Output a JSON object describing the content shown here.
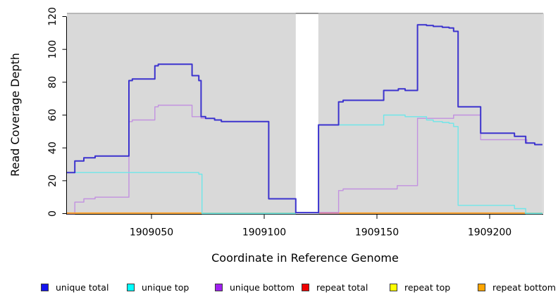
{
  "figure": {
    "x_axis_title": "Coordinate in Reference Genome",
    "y_axis_title": "Read Coverage Depth"
  },
  "legend": {
    "items": [
      {
        "label": "unique total",
        "color": "#1414EE"
      },
      {
        "label": "unique top",
        "color": "#00FFFF"
      },
      {
        "label": "unique bottom",
        "color": "#A020F0"
      },
      {
        "label": "repeat total",
        "color": "#EE0000"
      },
      {
        "label": "repeat top",
        "color": "#FFFF00"
      },
      {
        "label": "repeat bottom",
        "color": "#FFA500"
      }
    ]
  },
  "chart_data": {
    "type": "line",
    "style": "step-after",
    "title": "",
    "xlabel": "Coordinate in Reference Genome",
    "ylabel": "Read Coverage Depth",
    "xlim": [
      1909012.5,
      1909223.4
    ],
    "ylim": [
      0,
      122
    ],
    "grid": false,
    "legend_position": "bottom",
    "x_ticks": {
      "values": [
        1909050,
        1909100,
        1909150,
        1909200
      ],
      "labels": [
        "1909050",
        "1909100",
        "1909150",
        "1909200"
      ]
    },
    "y_ticks": {
      "values": [
        0,
        20,
        40,
        60,
        80,
        100,
        120
      ],
      "labels": [
        "0",
        "20",
        "40",
        "60",
        "80",
        "100",
        "120"
      ]
    },
    "panel_background": "#D9D9D9",
    "coverage_gap": {
      "from": 1909114,
      "to": 1909124
    },
    "panels": [
      [
        1909012.5,
        1909114
      ],
      [
        1909124,
        1909223.4
      ]
    ],
    "series": [
      {
        "name": "unique bottom",
        "color": "#C291E0",
        "width": 1.4,
        "render": true,
        "points": [
          [
            1909012.5,
            0
          ],
          [
            1909016,
            7
          ],
          [
            1909020,
            9
          ],
          [
            1909025,
            10
          ],
          [
            1909040,
            56
          ],
          [
            1909041.5,
            57
          ],
          [
            1909051.5,
            65
          ],
          [
            1909053,
            66
          ],
          [
            1909068,
            59
          ],
          [
            1909072,
            58
          ],
          [
            1909078,
            57
          ],
          [
            1909081,
            56
          ],
          [
            1909102,
            9
          ],
          [
            1909114,
            0.7
          ],
          null,
          [
            1909124,
            0.7
          ],
          [
            1909133,
            14
          ],
          [
            1909135,
            15
          ],
          [
            1909159,
            17
          ],
          [
            1909168,
            58
          ],
          [
            1909184,
            60
          ],
          [
            1909196,
            45
          ],
          [
            1909216.5,
            43
          ],
          [
            1909220,
            42
          ],
          [
            1909223.4,
            42
          ]
        ]
      },
      {
        "name": "unique top",
        "color": "#6FE6E9",
        "width": 1.4,
        "render": true,
        "points": [
          [
            1909012.5,
            25
          ],
          [
            1909071,
            24
          ],
          [
            1909072.4,
            0
          ],
          [
            1909114,
            0
          ],
          null,
          [
            1909124,
            0
          ],
          [
            1909124.1,
            54
          ],
          [
            1909153,
            60
          ],
          [
            1909162.5,
            59
          ],
          [
            1909172,
            57
          ],
          [
            1909175,
            56
          ],
          [
            1909179,
            55.5
          ],
          [
            1909182,
            55
          ],
          [
            1909184,
            53
          ],
          [
            1909186,
            5
          ],
          [
            1909211,
            3
          ],
          [
            1909216,
            0
          ],
          [
            1909223.4,
            0
          ]
        ]
      },
      {
        "name": "unique total",
        "color": "#3C33CE",
        "width": 2,
        "render": true,
        "points": [
          [
            1909012.5,
            25
          ],
          [
            1909016,
            32
          ],
          [
            1909020,
            34
          ],
          [
            1909025,
            35
          ],
          [
            1909040,
            81
          ],
          [
            1909041.5,
            82
          ],
          [
            1909051.5,
            90
          ],
          [
            1909053,
            91
          ],
          [
            1909068,
            84
          ],
          [
            1909071,
            81
          ],
          [
            1909072,
            59
          ],
          [
            1909074,
            58
          ],
          [
            1909078,
            57
          ],
          [
            1909081,
            56
          ],
          [
            1909102,
            9
          ],
          [
            1909114,
            0.6
          ],
          [
            1909124,
            0.6
          ],
          [
            1909124.1,
            54
          ],
          [
            1909133,
            68
          ],
          [
            1909135,
            69
          ],
          [
            1909153,
            75
          ],
          [
            1909159.5,
            76
          ],
          [
            1909162.5,
            75
          ],
          [
            1909168,
            115
          ],
          [
            1909172,
            114.5
          ],
          [
            1909175,
            114
          ],
          [
            1909179,
            113.5
          ],
          [
            1909182,
            113
          ],
          [
            1909184,
            111
          ],
          [
            1909186,
            65
          ],
          [
            1909196,
            49
          ],
          [
            1909211,
            47
          ],
          [
            1909216,
            43
          ],
          [
            1909220,
            42
          ],
          [
            1909223.4,
            42
          ]
        ]
      },
      {
        "name": "repeat total",
        "color": "#EE0000",
        "width": 1.4,
        "render": false,
        "points": [
          [
            1909012.5,
            0
          ],
          [
            1909223.4,
            0
          ]
        ]
      },
      {
        "name": "repeat top",
        "color": "#FFFF00",
        "width": 1.4,
        "render": false,
        "points": [
          [
            1909012.5,
            0
          ],
          [
            1909223.4,
            0
          ]
        ]
      },
      {
        "name": "repeat bottom",
        "color": "#FFA500",
        "width": 1.8,
        "render": false,
        "points": [
          [
            1909012.5,
            0
          ],
          [
            1909223.4,
            0
          ]
        ]
      }
    ],
    "bottom_segments": [
      {
        "name": "zero-line-repeat-bottom-left",
        "color": "#FF9D1E",
        "from": 1909012.5,
        "to": 1909072.4,
        "value": 0.3,
        "width": 1.8
      },
      {
        "name": "zero-line-blend-green-left",
        "color": "#7CCE8C",
        "from": 1909072.4,
        "to": 1909114,
        "value": 0.25,
        "width": 1.4
      },
      {
        "name": "zero-line-repeat-total-pink",
        "color": "#E0708C",
        "from": 1909124,
        "to": 1909133.3,
        "value": 0.3,
        "width": 1.4
      },
      {
        "name": "zero-line-repeat-bottom-right",
        "color": "#FF9D1E",
        "from": 1909133.3,
        "to": 1909215.6,
        "value": 0.3,
        "width": 1.8
      },
      {
        "name": "zero-line-blend-green-right",
        "color": "#7CCE8C",
        "from": 1909215.6,
        "to": 1909223.4,
        "value": 0.25,
        "width": 1.4
      }
    ]
  }
}
